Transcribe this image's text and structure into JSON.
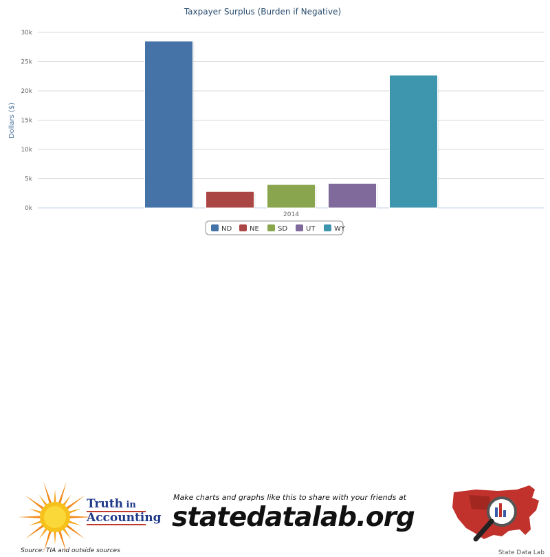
{
  "chart_data": {
    "type": "bar",
    "title": "Taxpayer Surplus (Burden if Negative)",
    "xlabel": "",
    "ylabel": "Dollars ($)",
    "categories": [
      "2014"
    ],
    "ylim": [
      0,
      30000
    ],
    "yticks": [
      0,
      5000,
      10000,
      15000,
      20000,
      25000,
      30000
    ],
    "ytick_labels": [
      "0k",
      "5k",
      "10k",
      "15k",
      "20k",
      "25k",
      "30k"
    ],
    "grid": true,
    "legend_position": "bottom-center",
    "series": [
      {
        "name": "ND",
        "values": [
          28500
        ],
        "color": "#4572a7"
      },
      {
        "name": "NE",
        "values": [
          2800
        ],
        "color": "#aa4643"
      },
      {
        "name": "SD",
        "values": [
          4000
        ],
        "color": "#89a54e"
      },
      {
        "name": "UT",
        "values": [
          4200
        ],
        "color": "#80699b"
      },
      {
        "name": "WY",
        "values": [
          22700
        ],
        "color": "#3d96ae"
      }
    ]
  },
  "footer": {
    "logo_line1_big": "Truth",
    "logo_line1_small": " in",
    "logo_line2": "Accounting",
    "source": "Source: TIA and outside sources",
    "promo": "Make charts and graphs like this to share with your friends at",
    "site": "statedatalab.org",
    "credit": "State Data Lab"
  }
}
